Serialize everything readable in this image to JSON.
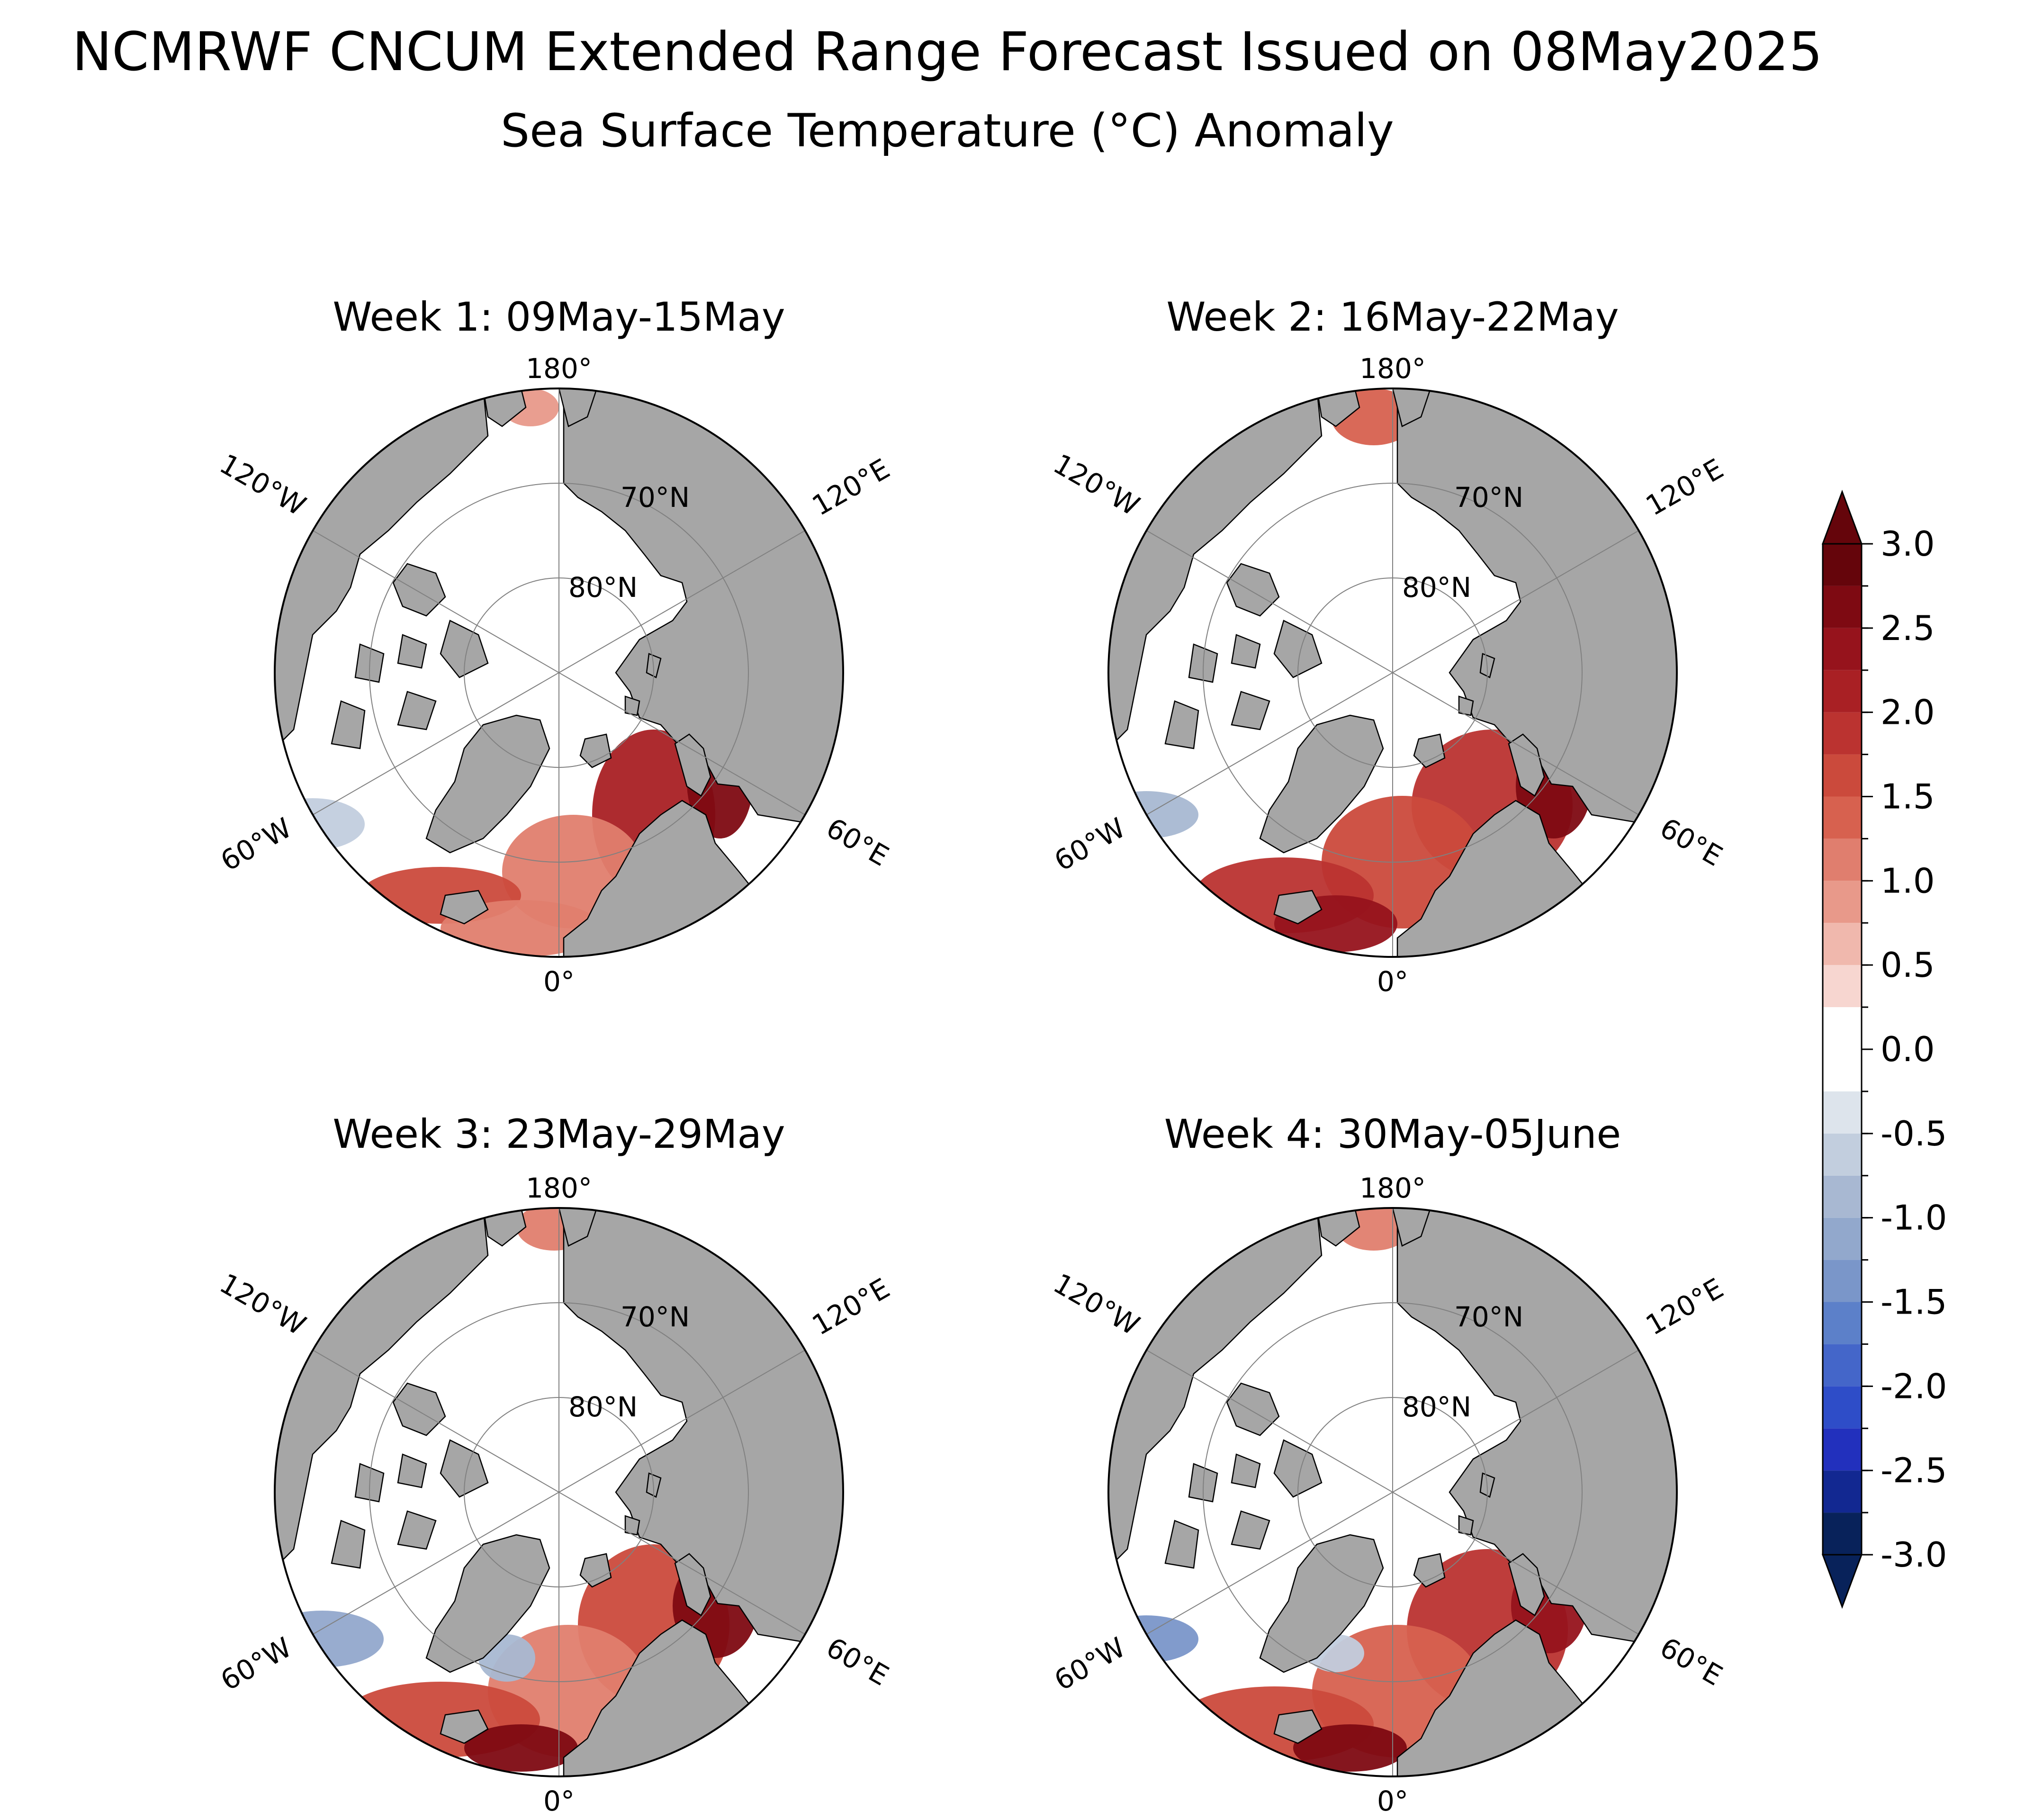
{
  "figure": {
    "title": "NCMRWF CNCUM Extended Range Forecast Issued on 08May2025",
    "subtitle": "Sea Surface Temperature (°C) Anomaly"
  },
  "panels": [
    {
      "title": "Week 1: 09May-15May"
    },
    {
      "title": "Week 2: 16May-22May"
    },
    {
      "title": "Week 3: 23May-29May"
    },
    {
      "title": "Week 4: 30May-05June"
    }
  ],
  "map_labels": {
    "lon_180": "180°",
    "lon_0": "0°",
    "lon_120w": "120°W",
    "lon_120e": "120°E",
    "lon_60w": "60°W",
    "lon_60e": "60°E",
    "lat_70": "70°N",
    "lat_80": "80°N"
  },
  "colorbar": {
    "ticks": [
      "3.0",
      "2.5",
      "2.0",
      "1.5",
      "1.0",
      "0.5",
      "0.0",
      "-0.5",
      "-1.0",
      "-1.5",
      "-2.0",
      "-2.5",
      "-3.0"
    ],
    "levels": [
      -3.0,
      -2.75,
      -2.5,
      -2.25,
      -2.0,
      -1.75,
      -1.5,
      -1.25,
      -1.0,
      -0.75,
      -0.5,
      -0.25,
      0.25,
      0.5,
      0.75,
      1.0,
      1.25,
      1.5,
      1.75,
      2.0,
      2.25,
      2.5,
      2.75,
      3.0
    ],
    "colors_low_to_high": [
      "#08225a",
      "#122891",
      "#2230bd",
      "#2e4dc8",
      "#4466c9",
      "#5c80c9",
      "#7a96c9",
      "#92a8cc",
      "#a8b8d2",
      "#c2cede",
      "#dde4ec",
      "#ffffff",
      "#f7d6d0",
      "#f0b8ad",
      "#e8998a",
      "#e07e6e",
      "#d7614f",
      "#cb4a3c",
      "#bb3330",
      "#a92024",
      "#96131c",
      "#7e0a12",
      "#65050b"
    ],
    "extend_low_color": "#08225a",
    "extend_high_color": "#65050b"
  },
  "colors": {
    "land": "#a6a6a6",
    "ocean": "#ffffff",
    "warm_anomaly": "#c0392f",
    "cold_anomaly": "#a9b9d4"
  }
}
